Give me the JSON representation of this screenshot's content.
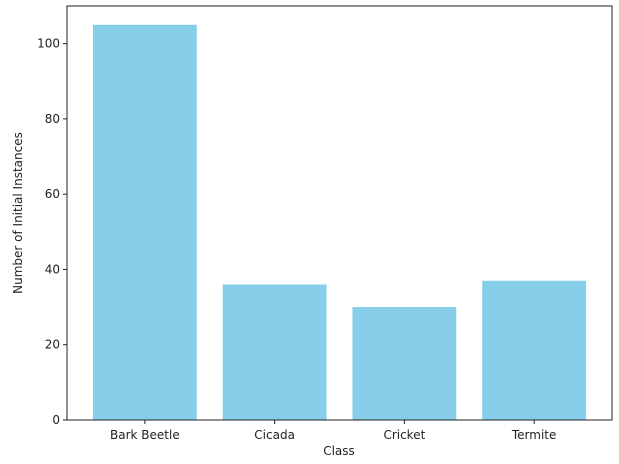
{
  "chart_data": {
    "type": "bar",
    "categories": [
      "Bark Beetle",
      "Cicada",
      "Cricket",
      "Termite"
    ],
    "values": [
      105,
      36,
      30,
      37
    ],
    "xlabel": "Class",
    "ylabel": "Number of Initial Instances",
    "ylim": [
      0,
      110
    ],
    "yticks": [
      "0",
      "20",
      "40",
      "60",
      "80",
      "100"
    ],
    "grid": false,
    "bar_color": "#87CEEB"
  }
}
